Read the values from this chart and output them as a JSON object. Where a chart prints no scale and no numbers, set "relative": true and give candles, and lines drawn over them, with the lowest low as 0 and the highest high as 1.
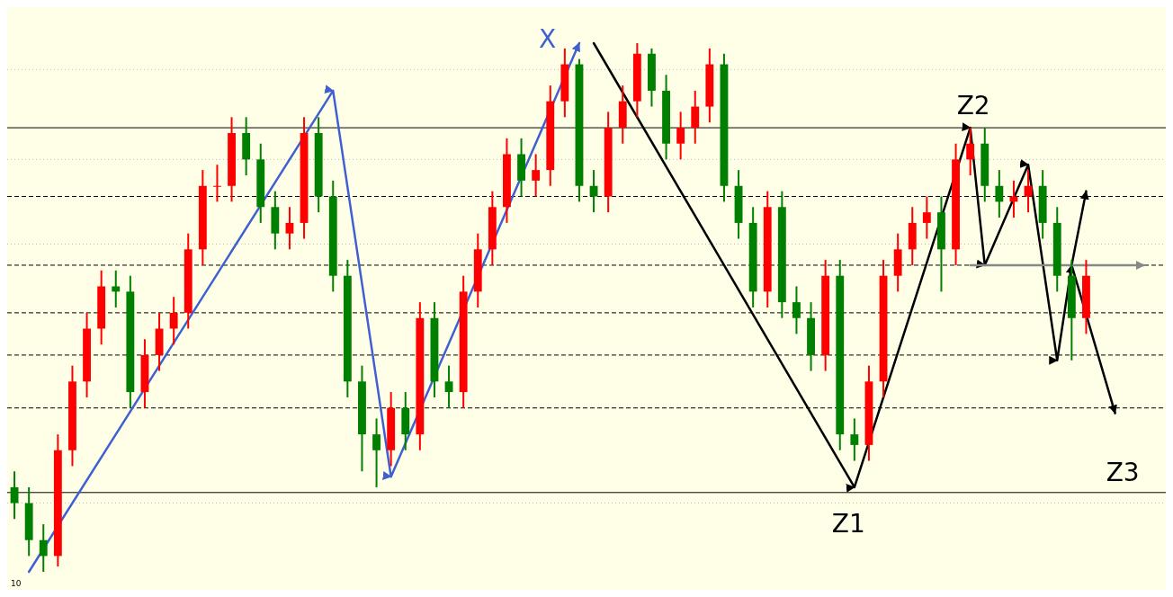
{
  "chart_data": {
    "type": "candlestick",
    "relative": true,
    "categories": [
      null,
      null,
      null,
      null,
      null,
      null,
      null,
      null,
      null,
      null,
      null,
      null,
      null,
      null,
      null,
      null,
      null,
      null,
      null,
      null,
      null,
      null,
      null,
      null,
      null,
      null,
      null,
      null,
      null,
      null,
      null,
      null,
      null,
      null,
      null,
      null,
      null,
      null,
      null,
      null,
      null,
      null,
      null,
      null,
      null,
      null,
      null,
      null,
      null,
      null,
      null,
      null,
      null,
      null,
      null,
      null,
      null,
      null,
      null,
      null,
      null,
      null,
      null,
      null,
      null,
      null,
      null,
      null,
      null,
      null,
      null,
      null,
      null,
      null,
      null,
      null,
      null,
      null,
      null,
      null
    ],
    "ohlc": [
      [
        0.16,
        0.19,
        0.1,
        0.13
      ],
      [
        0.13,
        0.16,
        0.03,
        0.06
      ],
      [
        0.06,
        0.09,
        0,
        0.03
      ],
      [
        0.03,
        0.26,
        0.01,
        0.23
      ],
      [
        0.23,
        0.39,
        0.2,
        0.36
      ],
      [
        0.36,
        0.49,
        0.33,
        0.46
      ],
      [
        0.46,
        0.57,
        0.43,
        0.54
      ],
      [
        0.54,
        0.57,
        0.5,
        0.53
      ],
      [
        0.53,
        0.56,
        0.31,
        0.34
      ],
      [
        0.34,
        0.44,
        0.31,
        0.41
      ],
      [
        0.41,
        0.49,
        0.38,
        0.46
      ],
      [
        0.46,
        0.52,
        0.43,
        0.49
      ],
      [
        0.49,
        0.64,
        0.46,
        0.61
      ],
      [
        0.61,
        0.76,
        0.58,
        0.73
      ],
      [
        0.73,
        0.77,
        0.7,
        0.73
      ],
      [
        0.73,
        0.86,
        0.7,
        0.83
      ],
      [
        0.83,
        0.86,
        0.75,
        0.78
      ],
      [
        0.78,
        0.81,
        0.66,
        0.69
      ],
      [
        0.69,
        0.72,
        0.61,
        0.64
      ],
      [
        0.64,
        0.69,
        0.61,
        0.66
      ],
      [
        0.66,
        0.86,
        0.63,
        0.83
      ],
      [
        0.83,
        0.86,
        0.68,
        0.71
      ],
      [
        0.71,
        0.74,
        0.53,
        0.56
      ],
      [
        0.56,
        0.59,
        0.33,
        0.36
      ],
      [
        0.36,
        0.39,
        0.19,
        0.26
      ],
      [
        0.26,
        0.29,
        0.16,
        0.23
      ],
      [
        0.23,
        0.34,
        0.2,
        0.31
      ],
      [
        0.31,
        0.34,
        0.23,
        0.26
      ],
      [
        0.26,
        0.51,
        0.23,
        0.48
      ],
      [
        0.48,
        0.51,
        0.33,
        0.36
      ],
      [
        0.36,
        0.39,
        0.31,
        0.34
      ],
      [
        0.34,
        0.56,
        0.31,
        0.53
      ],
      [
        0.53,
        0.64,
        0.5,
        0.61
      ],
      [
        0.61,
        0.72,
        0.58,
        0.69
      ],
      [
        0.69,
        0.82,
        0.66,
        0.79
      ],
      [
        0.79,
        0.82,
        0.71,
        0.74
      ],
      [
        0.74,
        0.79,
        0.71,
        0.76
      ],
      [
        0.76,
        0.92,
        0.73,
        0.89
      ],
      [
        0.89,
        0.99,
        0.86,
        0.96
      ],
      [
        0.96,
        0.97,
        0.7,
        0.73
      ],
      [
        0.73,
        0.76,
        0.68,
        0.71
      ],
      [
        0.71,
        0.87,
        0.68,
        0.84
      ],
      [
        0.84,
        0.92,
        0.81,
        0.89
      ],
      [
        0.89,
        1,
        0.86,
        0.98
      ],
      [
        0.98,
        0.99,
        0.88,
        0.91
      ],
      [
        0.91,
        0.94,
        0.78,
        0.81
      ],
      [
        0.81,
        0.87,
        0.78,
        0.84
      ],
      [
        0.84,
        0.91,
        0.81,
        0.88
      ],
      [
        0.88,
        0.99,
        0.85,
        0.96
      ],
      [
        0.96,
        0.98,
        0.7,
        0.73
      ],
      [
        0.73,
        0.76,
        0.63,
        0.66
      ],
      [
        0.66,
        0.69,
        0.5,
        0.53
      ],
      [
        0.53,
        0.72,
        0.5,
        0.69
      ],
      [
        0.69,
        0.72,
        0.48,
        0.51
      ],
      [
        0.51,
        0.54,
        0.45,
        0.48
      ],
      [
        0.48,
        0.51,
        0.38,
        0.41
      ],
      [
        0.41,
        0.59,
        0.38,
        0.56
      ],
      [
        0.56,
        0.59,
        0.23,
        0.26
      ],
      [
        0.26,
        0.29,
        0.21,
        0.24
      ],
      [
        0.24,
        0.39,
        0.21,
        0.36
      ],
      [
        0.36,
        0.59,
        0.33,
        0.56
      ],
      [
        0.56,
        0.64,
        0.53,
        0.61
      ],
      [
        0.61,
        0.69,
        0.58,
        0.66
      ],
      [
        0.66,
        0.71,
        0.63,
        0.68
      ],
      [
        0.68,
        0.71,
        0.53,
        0.61
      ],
      [
        0.61,
        0.81,
        0.58,
        0.78
      ],
      [
        0.78,
        0.84,
        0.75,
        0.81
      ],
      [
        0.81,
        0.84,
        0.7,
        0.73
      ],
      [
        0.73,
        0.76,
        0.67,
        0.7
      ],
      [
        0.7,
        0.74,
        0.67,
        0.71
      ],
      [
        0.71,
        0.76,
        0.68,
        0.73
      ],
      [
        0.73,
        0.76,
        0.63,
        0.66
      ],
      [
        0.66,
        0.69,
        0.53,
        0.56
      ],
      [
        0.56,
        0.59,
        0.4,
        0.48
      ],
      [
        0.48,
        0.59,
        0.45,
        0.56
      ],
      null,
      null,
      null,
      null,
      null
    ],
    "series": [
      {
        "type": "line",
        "color": "#4060d0",
        "values": [
          null,
          0,
          null,
          null,
          null,
          null,
          null,
          null,
          null,
          null,
          null,
          null,
          null,
          null,
          null,
          null,
          null,
          null,
          null,
          null,
          null,
          null,
          0.91,
          null,
          null,
          null,
          0.18,
          null,
          null,
          null,
          null,
          null,
          null,
          null,
          null,
          null,
          null,
          null,
          null,
          1,
          null,
          null,
          null,
          null,
          null,
          null,
          null,
          null,
          null,
          null,
          null,
          null,
          null,
          null,
          null,
          null,
          null,
          null,
          null,
          null,
          null,
          null,
          null,
          null,
          null,
          null,
          null,
          null,
          null,
          null,
          null,
          null,
          null,
          null,
          null,
          null,
          null,
          null,
          null,
          null
        ]
      },
      {
        "type": "line",
        "color": "#000000",
        "values": [
          null,
          null,
          null,
          null,
          null,
          null,
          null,
          null,
          null,
          null,
          null,
          null,
          null,
          null,
          null,
          null,
          null,
          null,
          null,
          null,
          null,
          null,
          null,
          null,
          null,
          null,
          null,
          null,
          null,
          null,
          null,
          null,
          null,
          null,
          null,
          null,
          null,
          null,
          null,
          null,
          1,
          null,
          null,
          null,
          null,
          null,
          null,
          null,
          null,
          null,
          null,
          null,
          null,
          null,
          null,
          null,
          null,
          null,
          0.16,
          null,
          null,
          null,
          null,
          null,
          null,
          null,
          0.84,
          0.58,
          null,
          null,
          0.77,
          null,
          0.4,
          0.58,
          0.72,
          null,
          null,
          null,
          null,
          null
        ]
      },
      {
        "type": "line",
        "color": "#000000",
        "values": [
          null,
          null,
          null,
          null,
          null,
          null,
          null,
          null,
          null,
          null,
          null,
          null,
          null,
          null,
          null,
          null,
          null,
          null,
          null,
          null,
          null,
          null,
          null,
          null,
          null,
          null,
          null,
          null,
          null,
          null,
          null,
          null,
          null,
          null,
          null,
          null,
          null,
          null,
          null,
          null,
          null,
          null,
          null,
          null,
          null,
          null,
          null,
          null,
          null,
          null,
          null,
          null,
          null,
          null,
          null,
          null,
          null,
          null,
          null,
          null,
          null,
          null,
          null,
          null,
          null,
          null,
          null,
          null,
          null,
          null,
          null,
          null,
          null,
          0.58,
          null,
          null,
          0.3,
          null,
          null,
          null
        ]
      },
      {
        "type": "line",
        "color": "#888888",
        "values": [
          null,
          null,
          null,
          null,
          null,
          null,
          null,
          null,
          null,
          null,
          null,
          null,
          null,
          null,
          null,
          null,
          null,
          null,
          null,
          null,
          null,
          null,
          null,
          null,
          null,
          null,
          null,
          null,
          null,
          null,
          null,
          null,
          null,
          null,
          null,
          null,
          null,
          null,
          null,
          null,
          null,
          null,
          null,
          null,
          null,
          null,
          null,
          null,
          null,
          null,
          null,
          null,
          null,
          null,
          null,
          null,
          null,
          null,
          null,
          null,
          null,
          null,
          null,
          null,
          null,
          null,
          0.58,
          null,
          null,
          null,
          null,
          null,
          null,
          null,
          null,
          null,
          null,
          null,
          0.58,
          null
        ]
      }
    ],
    "ref_lines": [
      {
        "axis": "y",
        "value": 0.84,
        "color": "#000000",
        "line_style": "solid"
      },
      {
        "axis": "y",
        "value": 0.15,
        "color": "#000000",
        "line_style": "solid"
      },
      {
        "axis": "y",
        "value": 0.71,
        "color": "#000000",
        "line_style": "dashed"
      },
      {
        "axis": "y",
        "value": 0.58,
        "color": "#000000",
        "line_style": "dashed"
      },
      {
        "axis": "y",
        "value": 0.49,
        "color": "#000000",
        "line_style": "dashed"
      },
      {
        "axis": "y",
        "value": 0.41,
        "color": "#000000",
        "line_style": "dashed"
      },
      {
        "axis": "y",
        "value": 0.31,
        "color": "#000000",
        "line_style": "dashed"
      },
      {
        "axis": "y",
        "value": 0.95,
        "color": "#bbbbbb",
        "line_style": "dotted"
      },
      {
        "axis": "y",
        "value": 0.78,
        "color": "#bbbbbb",
        "line_style": "dotted"
      },
      {
        "axis": "y",
        "value": 0.62,
        "color": "#bbbbbb",
        "line_style": "dotted"
      },
      {
        "axis": "y",
        "value": 0.13,
        "color": "#bbbbbb",
        "line_style": "dotted"
      }
    ],
    "annotations": [
      "X",
      "Z1",
      "Z2",
      "Z3",
      "10"
    ]
  }
}
